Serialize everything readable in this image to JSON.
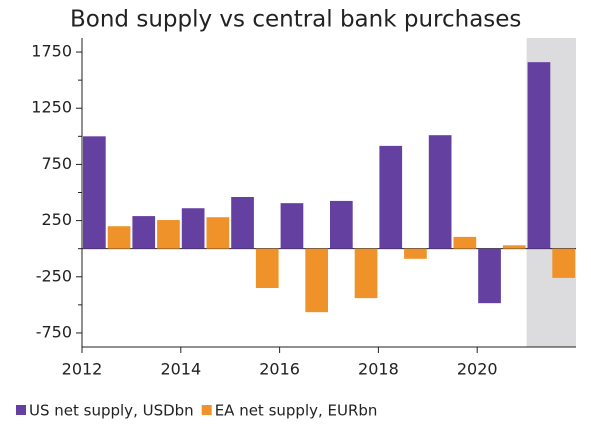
{
  "chart_data": {
    "type": "bar",
    "title": "Bond supply vs central bank purchases",
    "x": [
      2012,
      2013,
      2014,
      2015,
      2016,
      2017,
      2018,
      2019,
      2020,
      2021
    ],
    "series": [
      {
        "name": "US net supply, USDbn",
        "color": "#6441a0",
        "values": [
          1000,
          290,
          360,
          460,
          405,
          425,
          915,
          1010,
          -485,
          1660
        ]
      },
      {
        "name": "EA net supply, EURbn",
        "color": "#f0922a",
        "values": [
          200,
          255,
          280,
          -350,
          -565,
          -440,
          -90,
          105,
          30,
          -260
        ]
      }
    ],
    "xlim": [
      2012,
      2022
    ],
    "xticks": [
      2012,
      2014,
      2016,
      2018,
      2020
    ],
    "ylim": [
      -875,
      1875
    ],
    "yticks": [
      1750,
      1250,
      750,
      250,
      -250,
      -750
    ],
    "yminorticks": [
      1500,
      1000,
      500,
      0,
      -500
    ],
    "shaded": [
      2021,
      2022
    ],
    "shade_color": "#dcdcde",
    "legend": "bottom-left"
  }
}
